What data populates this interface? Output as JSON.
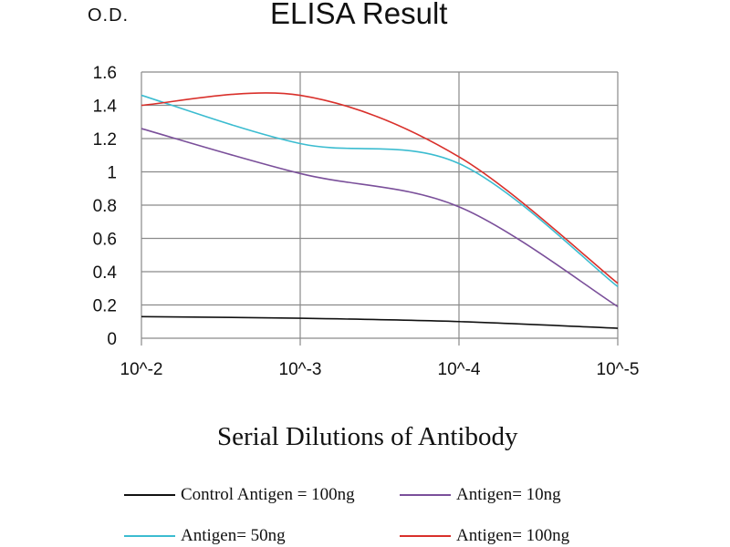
{
  "chart_data": {
    "type": "line",
    "title": "ELISA Result",
    "ylabel": "O.D.",
    "xlabel": "Serial Dilutions of Antibody",
    "categories": [
      "10^-2",
      "10^-3",
      "10^-4",
      "10^-5"
    ],
    "ylim": [
      0,
      1.6
    ],
    "yticks": [
      "0",
      "0.2",
      "0.4",
      "0.6",
      "0.8",
      "1",
      "1.2",
      "1.4",
      "1.6"
    ],
    "grid": true,
    "legend_position": "bottom",
    "series": [
      {
        "name": "Control Antigen = 100ng",
        "color": "#111111",
        "values": [
          0.13,
          0.12,
          0.1,
          0.06
        ]
      },
      {
        "name": "Antigen= 10ng",
        "color": "#7a4f9a",
        "values": [
          1.26,
          0.99,
          0.79,
          0.19
        ]
      },
      {
        "name": "Antigen= 50ng",
        "color": "#3bbcd0",
        "values": [
          1.46,
          1.17,
          1.05,
          0.31
        ]
      },
      {
        "name": "Antigen= 100ng",
        "color": "#d9302b",
        "values": [
          1.4,
          1.46,
          1.09,
          0.33
        ]
      }
    ]
  }
}
